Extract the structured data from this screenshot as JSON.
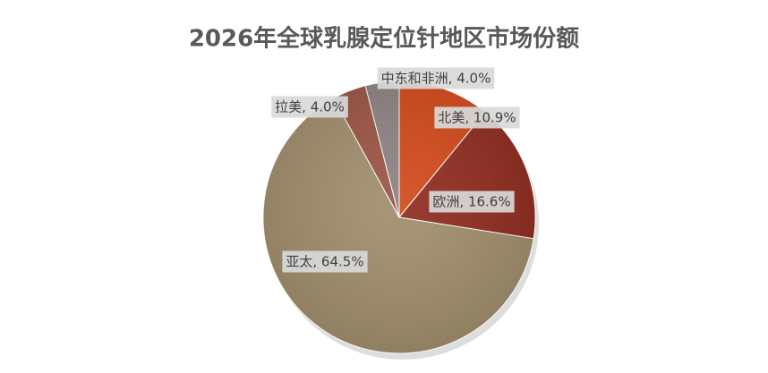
{
  "chart_data": {
    "type": "pie",
    "title": "2026年全球乳腺定位针地区市场份额",
    "values": [
      10.9,
      16.6,
      64.5,
      4.0,
      4.0
    ],
    "value_labels": [
      "北美, 10.9%",
      "欧洲, 16.6%",
      "亚太, 64.5%",
      "拉美, 4.0%",
      "中东和非洲, 4.0%"
    ],
    "colors": [
      "#D2491A",
      "#8F2B1F",
      "#A08D6B",
      "#9B5444",
      "#8E8282"
    ]
  }
}
